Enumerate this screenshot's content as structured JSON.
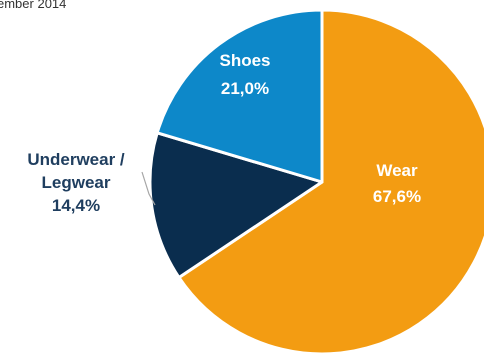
{
  "chart_data": {
    "type": "pie",
    "title": "ember 2014",
    "slices": [
      {
        "name": "Wear",
        "value": 67.6,
        "value_label": "67,6%",
        "color": "#f39c12"
      },
      {
        "name": "Underwear / Legwear",
        "value": 14.4,
        "value_label": "14,4%",
        "color": "#0a2d4e"
      },
      {
        "name": "Shoes",
        "value": 21.0,
        "value_label": "21,0%",
        "color": "#0d88c9"
      }
    ],
    "label_colors": {
      "inside": "#ffffff",
      "outside": "#1f3e5f"
    },
    "legend": "none",
    "start_angle_deg": 0,
    "direction": "clockwise",
    "label_placement": {
      "Wear": "inside",
      "Underwear / Legwear": "outside",
      "Shoes": "inside"
    }
  }
}
